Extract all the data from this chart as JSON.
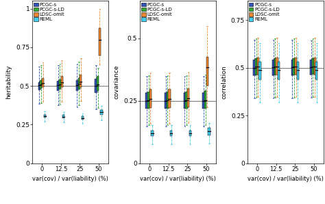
{
  "colors": {
    "PCGC-s": "#3355bb",
    "PCGC-s-LD": "#33aa33",
    "LDSC-omit": "#ee8833",
    "REML": "#44ccee"
  },
  "legend_labels": [
    "PCGC-s",
    "PCGC-s-LD",
    "LDSC-omit",
    "REML"
  ],
  "x_categories": [
    0,
    12.5,
    25,
    50
  ],
  "x_labels": [
    "0",
    "12.5",
    "25",
    "50"
  ],
  "x_label": "var(cov) / var(liability) (%)",
  "panels": [
    {
      "ylabel": "heritability",
      "true_line": 0.5,
      "ylim": [
        0,
        1.05
      ],
      "yticks": [
        0,
        0.25,
        0.5,
        0.75,
        1
      ],
      "ytick_labels": [
        "0",
        "0.25",
        "0.5",
        "0.75",
        "1"
      ],
      "data": {
        "PCGC-s": {
          "0": {
            "q1": 0.475,
            "med": 0.505,
            "q3": 0.525,
            "whislo": 0.385,
            "whishi": 0.625
          },
          "12.5": {
            "q1": 0.47,
            "med": 0.505,
            "q3": 0.53,
            "whislo": 0.375,
            "whishi": 0.635
          },
          "25": {
            "q1": 0.468,
            "med": 0.505,
            "q3": 0.535,
            "whislo": 0.365,
            "whishi": 0.645
          },
          "50": {
            "q1": 0.455,
            "med": 0.5,
            "q3": 0.545,
            "whislo": 0.35,
            "whishi": 0.635
          }
        },
        "PCGC-s-LD": {
          "0": {
            "q1": 0.485,
            "med": 0.51,
            "q3": 0.535,
            "whislo": 0.39,
            "whishi": 0.635
          },
          "12.5": {
            "q1": 0.478,
            "med": 0.51,
            "q3": 0.54,
            "whislo": 0.38,
            "whishi": 0.645
          },
          "25": {
            "q1": 0.478,
            "med": 0.512,
            "q3": 0.548,
            "whislo": 0.375,
            "whishi": 0.655
          },
          "50": {
            "q1": 0.468,
            "med": 0.51,
            "q3": 0.562,
            "whislo": 0.36,
            "whishi": 0.615
          }
        },
        "LDSC-omit": {
          "0": {
            "q1": 0.492,
            "med": 0.517,
            "q3": 0.548,
            "whislo": 0.4,
            "whishi": 0.65
          },
          "12.5": {
            "q1": 0.49,
            "med": 0.525,
            "q3": 0.562,
            "whislo": 0.4,
            "whishi": 0.665
          },
          "25": {
            "q1": 0.492,
            "med": 0.528,
            "q3": 0.572,
            "whislo": 0.402,
            "whishi": 0.68
          },
          "50": {
            "q1": 0.695,
            "med": 0.8,
            "q3": 0.875,
            "whislo": 0.64,
            "whishi": 1.0
          }
        },
        "REML": {
          "0": {
            "q1": 0.295,
            "med": 0.305,
            "q3": 0.315,
            "whislo": 0.27,
            "whishi": 0.335
          },
          "12.5": {
            "q1": 0.292,
            "med": 0.302,
            "q3": 0.312,
            "whislo": 0.267,
            "whishi": 0.33
          },
          "25": {
            "q1": 0.283,
            "med": 0.293,
            "q3": 0.305,
            "whislo": 0.258,
            "whishi": 0.325
          },
          "50": {
            "q1": 0.315,
            "med": 0.33,
            "q3": 0.347,
            "whislo": 0.28,
            "whishi": 0.372
          }
        }
      }
    },
    {
      "ylabel": "covariance",
      "true_line": 0.25,
      "ylim": [
        0,
        0.65
      ],
      "yticks": [
        0,
        0.25,
        0.5
      ],
      "ytick_labels": [
        "0",
        "0.25",
        "0.5"
      ],
      "data": {
        "PCGC-s": {
          "0": {
            "q1": 0.218,
            "med": 0.25,
            "q3": 0.282,
            "whislo": 0.148,
            "whishi": 0.348
          },
          "12.5": {
            "q1": 0.218,
            "med": 0.25,
            "q3": 0.282,
            "whislo": 0.148,
            "whishi": 0.348
          },
          "25": {
            "q1": 0.218,
            "med": 0.25,
            "q3": 0.282,
            "whislo": 0.148,
            "whishi": 0.348
          },
          "50": {
            "q1": 0.218,
            "med": 0.25,
            "q3": 0.282,
            "whislo": 0.148,
            "whishi": 0.348
          }
        },
        "PCGC-s-LD": {
          "0": {
            "q1": 0.22,
            "med": 0.252,
            "q3": 0.285,
            "whislo": 0.152,
            "whishi": 0.352
          },
          "12.5": {
            "q1": 0.22,
            "med": 0.252,
            "q3": 0.285,
            "whislo": 0.152,
            "whishi": 0.352
          },
          "25": {
            "q1": 0.22,
            "med": 0.252,
            "q3": 0.285,
            "whislo": 0.152,
            "whishi": 0.352
          },
          "50": {
            "q1": 0.22,
            "med": 0.252,
            "q3": 0.29,
            "whislo": 0.152,
            "whishi": 0.355
          }
        },
        "LDSC-omit": {
          "0": {
            "q1": 0.222,
            "med": 0.258,
            "q3": 0.295,
            "whislo": 0.158,
            "whishi": 0.362
          },
          "12.5": {
            "q1": 0.222,
            "med": 0.258,
            "q3": 0.295,
            "whislo": 0.158,
            "whishi": 0.362
          },
          "25": {
            "q1": 0.225,
            "med": 0.26,
            "q3": 0.298,
            "whislo": 0.16,
            "whishi": 0.365
          },
          "50": {
            "q1": 0.31,
            "med": 0.385,
            "q3": 0.425,
            "whislo": 0.225,
            "whishi": 0.55
          }
        },
        "REML": {
          "0": {
            "q1": 0.108,
            "med": 0.12,
            "q3": 0.132,
            "whislo": 0.075,
            "whishi": 0.152
          },
          "12.5": {
            "q1": 0.108,
            "med": 0.12,
            "q3": 0.132,
            "whislo": 0.075,
            "whishi": 0.152
          },
          "25": {
            "q1": 0.108,
            "med": 0.12,
            "q3": 0.132,
            "whislo": 0.075,
            "whishi": 0.152
          },
          "50": {
            "q1": 0.112,
            "med": 0.128,
            "q3": 0.142,
            "whislo": 0.08,
            "whishi": 0.16
          }
        }
      }
    },
    {
      "ylabel": "correlation",
      "true_line": 0.5,
      "ylim": [
        0,
        0.85
      ],
      "yticks": [
        0,
        0.25,
        0.5,
        0.75
      ],
      "ytick_labels": [
        "0",
        "0.25",
        "0.5",
        "0.75"
      ],
      "data": {
        "PCGC-s": {
          "0": {
            "q1": 0.458,
            "med": 0.5,
            "q3": 0.542,
            "whislo": 0.34,
            "whishi": 0.645
          },
          "12.5": {
            "q1": 0.46,
            "med": 0.502,
            "q3": 0.543,
            "whislo": 0.342,
            "whishi": 0.645
          },
          "25": {
            "q1": 0.46,
            "med": 0.502,
            "q3": 0.543,
            "whislo": 0.342,
            "whishi": 0.645
          },
          "50": {
            "q1": 0.462,
            "med": 0.502,
            "q3": 0.543,
            "whislo": 0.345,
            "whishi": 0.643
          }
        },
        "PCGC-s-LD": {
          "0": {
            "q1": 0.462,
            "med": 0.505,
            "q3": 0.548,
            "whislo": 0.345,
            "whishi": 0.652
          },
          "12.5": {
            "q1": 0.462,
            "med": 0.505,
            "q3": 0.548,
            "whislo": 0.345,
            "whishi": 0.652
          },
          "25": {
            "q1": 0.462,
            "med": 0.505,
            "q3": 0.548,
            "whislo": 0.345,
            "whishi": 0.652
          },
          "50": {
            "q1": 0.465,
            "med": 0.507,
            "q3": 0.55,
            "whislo": 0.348,
            "whishi": 0.652
          }
        },
        "LDSC-omit": {
          "0": {
            "q1": 0.462,
            "med": 0.507,
            "q3": 0.552,
            "whislo": 0.348,
            "whishi": 0.658
          },
          "12.5": {
            "q1": 0.462,
            "med": 0.507,
            "q3": 0.552,
            "whislo": 0.348,
            "whishi": 0.658
          },
          "25": {
            "q1": 0.462,
            "med": 0.507,
            "q3": 0.552,
            "whislo": 0.348,
            "whishi": 0.658
          },
          "50": {
            "q1": 0.462,
            "med": 0.507,
            "q3": 0.552,
            "whislo": 0.348,
            "whishi": 0.658
          }
        },
        "REML": {
          "0": {
            "q1": 0.438,
            "med": 0.488,
            "q3": 0.53,
            "whislo": 0.318,
            "whishi": 0.628
          },
          "12.5": {
            "q1": 0.438,
            "med": 0.488,
            "q3": 0.53,
            "whislo": 0.318,
            "whishi": 0.628
          },
          "25": {
            "q1": 0.438,
            "med": 0.488,
            "q3": 0.53,
            "whislo": 0.318,
            "whishi": 0.628
          },
          "50": {
            "q1": 0.438,
            "med": 0.488,
            "q3": 0.53,
            "whislo": 0.318,
            "whishi": 0.628
          }
        }
      }
    }
  ]
}
